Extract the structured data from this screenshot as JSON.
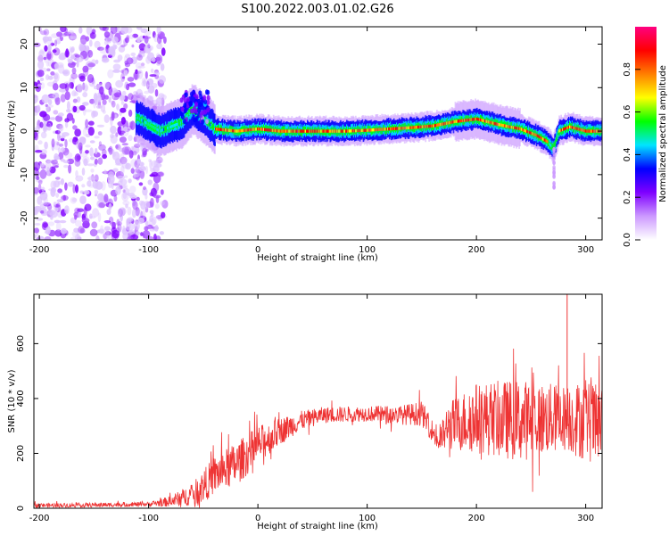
{
  "title": "S100.2022.003.01.02.G26",
  "chart_data": [
    {
      "type": "heatmap",
      "xlabel": "Height of straight line (km)",
      "ylabel": "Frequency (Hz)",
      "xlim": [
        -205,
        315
      ],
      "ylim": [
        -25,
        24
      ],
      "xticks": [
        -200,
        -100,
        0,
        100,
        200,
        300
      ],
      "yticks": [
        -20,
        -10,
        0,
        10,
        20
      ],
      "colorbar": {
        "label": "Normalized spectral amplitude",
        "range": [
          0,
          1
        ],
        "ticks": [
          "0.0",
          "0.2",
          "0.4",
          "0.6",
          "0.8"
        ],
        "colors": [
          "#ffffff",
          "#cc99ff",
          "#7f00ff",
          "#0000ff",
          "#00e5ff",
          "#00ff00",
          "#ffff00",
          "#ff7f00",
          "#ff0000",
          "#ff0080"
        ]
      },
      "ridge_center": {
        "x": [
          -110,
          -90,
          -70,
          -60,
          -50,
          -40,
          -20,
          0,
          20,
          50,
          80,
          100,
          120,
          140,
          160,
          180,
          200,
          220,
          240,
          255,
          265,
          270,
          275,
          285,
          300,
          315
        ],
        "y": [
          3,
          0,
          2,
          5,
          3,
          0.5,
          0,
          0.5,
          0,
          0,
          0,
          0.2,
          0.5,
          0.8,
          1.2,
          2.2,
          2.8,
          1.5,
          0.5,
          -1,
          -2.5,
          -4,
          0,
          1,
          0,
          0
        ]
      },
      "noise_region": {
        "x": [
          -205,
          -100
        ],
        "amplitude": 0.25
      }
    },
    {
      "type": "line",
      "xlabel": "Height of straight line (km)",
      "ylabel": "SNR (10 * v/v)",
      "xlim": [
        -205,
        315
      ],
      "ylim": [
        0,
        780
      ],
      "xticks": [
        -200,
        -100,
        0,
        100,
        200,
        300
      ],
      "yticks": [
        0,
        200,
        400,
        600
      ],
      "color": "#ee3333",
      "envelope": {
        "x": [
          -205,
          -150,
          -100,
          -80,
          -60,
          -50,
          -40,
          -20,
          0,
          20,
          40,
          60,
          100,
          130,
          150,
          160,
          165,
          175,
          200,
          240,
          280,
          300,
          315
        ],
        "mean": [
          10,
          12,
          15,
          25,
          50,
          80,
          120,
          160,
          230,
          280,
          320,
          340,
          345,
          340,
          345,
          280,
          240,
          300,
          330,
          320,
          330,
          320,
          300
        ],
        "spread": [
          8,
          8,
          8,
          20,
          40,
          60,
          70,
          80,
          70,
          50,
          35,
          30,
          28,
          35,
          45,
          40,
          40,
          90,
          130,
          150,
          120,
          150,
          140
        ]
      },
      "peak": {
        "x": 283,
        "y": 780
      }
    }
  ]
}
